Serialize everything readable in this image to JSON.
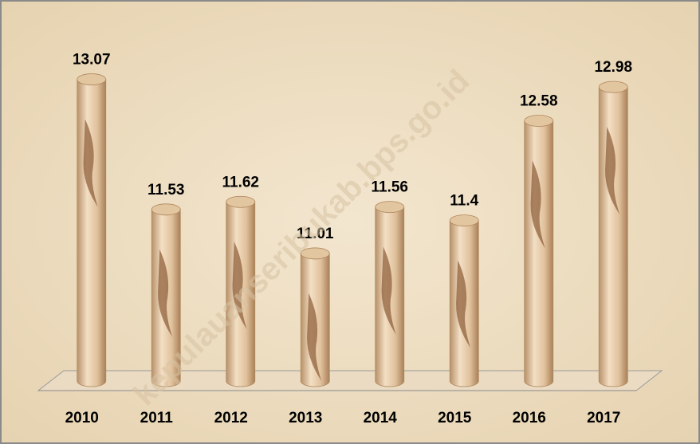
{
  "chart_data": {
    "type": "cylinder-bar",
    "categories": [
      "2010",
      "2011",
      "2012",
      "2013",
      "2014",
      "2015",
      "2016",
      "2017"
    ],
    "values": [
      13.07,
      11.53,
      11.62,
      11.01,
      11.56,
      11.4,
      12.58,
      12.98
    ],
    "color": "#e2c6a0",
    "ylim": [
      9.5,
      13.5
    ],
    "watermark": "kepulauanseribukab.bps.go.id"
  }
}
